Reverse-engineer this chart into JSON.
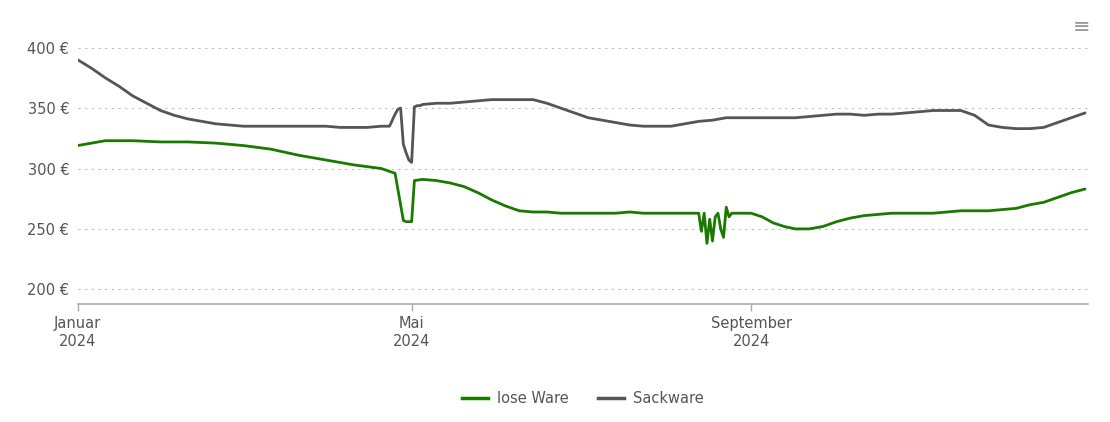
{
  "ylabel_ticks": [
    "200 €",
    "250 €",
    "300 €",
    "350 €",
    "400 €"
  ],
  "yticks": [
    200,
    250,
    300,
    350,
    400
  ],
  "ylim": [
    188,
    415
  ],
  "xlim_days": [
    0,
    366
  ],
  "xtick_labels": [
    "Januar\n2024",
    "Mai\n2024",
    "September\n2024"
  ],
  "xtick_positions_days": [
    0,
    121,
    244
  ],
  "legend_labels": [
    "lose Ware",
    "Sackware"
  ],
  "legend_colors": [
    "#1a7a00",
    "#555555"
  ],
  "line_color_lose": "#1a7a00",
  "line_color_sack": "#555555",
  "background_color": "#ffffff",
  "grid_color": "#bbbbbb",
  "axis_color": "#aaaaaa",
  "lose_ware_x": [
    0,
    5,
    10,
    20,
    30,
    40,
    50,
    60,
    70,
    80,
    90,
    100,
    110,
    115,
    117,
    118,
    119,
    120,
    121,
    122,
    125,
    130,
    135,
    140,
    145,
    150,
    155,
    160,
    165,
    170,
    175,
    180,
    185,
    190,
    195,
    200,
    205,
    210,
    215,
    220,
    225,
    226,
    227,
    228,
    229,
    230,
    231,
    232,
    233,
    234,
    235,
    236,
    237,
    238,
    239,
    240,
    241,
    242,
    243,
    244,
    248,
    252,
    256,
    260,
    265,
    270,
    275,
    280,
    285,
    290,
    295,
    300,
    305,
    310,
    315,
    320,
    325,
    330,
    335,
    340,
    345,
    350,
    355,
    360,
    365
  ],
  "lose_ware_y": [
    319,
    321,
    323,
    323,
    322,
    322,
    321,
    319,
    316,
    311,
    307,
    303,
    300,
    296,
    270,
    257,
    256,
    256,
    256,
    290,
    291,
    290,
    288,
    285,
    280,
    274,
    269,
    265,
    264,
    264,
    263,
    263,
    263,
    263,
    263,
    264,
    263,
    263,
    263,
    263,
    263,
    248,
    263,
    238,
    258,
    240,
    260,
    263,
    250,
    243,
    268,
    260,
    263,
    263,
    263,
    263,
    263,
    263,
    263,
    263,
    260,
    255,
    252,
    250,
    250,
    252,
    256,
    259,
    261,
    262,
    263,
    263,
    263,
    263,
    264,
    265,
    265,
    265,
    266,
    267,
    270,
    272,
    276,
    280,
    283
  ],
  "sack_ware_x": [
    0,
    5,
    10,
    15,
    20,
    25,
    30,
    35,
    40,
    45,
    50,
    55,
    60,
    65,
    70,
    75,
    80,
    85,
    90,
    95,
    100,
    105,
    110,
    113,
    115,
    116,
    117,
    118,
    119,
    120,
    121,
    122,
    123,
    124,
    125,
    130,
    135,
    140,
    145,
    150,
    155,
    160,
    165,
    170,
    175,
    180,
    185,
    190,
    195,
    200,
    205,
    210,
    215,
    220,
    225,
    230,
    235,
    240,
    245,
    250,
    255,
    260,
    265,
    270,
    275,
    280,
    285,
    290,
    295,
    300,
    305,
    310,
    315,
    320,
    325,
    330,
    335,
    340,
    345,
    350,
    355,
    360,
    365
  ],
  "sack_ware_y": [
    390,
    383,
    375,
    368,
    360,
    354,
    348,
    344,
    341,
    339,
    337,
    336,
    335,
    335,
    335,
    335,
    335,
    335,
    335,
    334,
    334,
    334,
    335,
    335,
    345,
    349,
    350,
    320,
    313,
    307,
    305,
    351,
    352,
    352,
    353,
    354,
    354,
    355,
    356,
    357,
    357,
    357,
    357,
    354,
    350,
    346,
    342,
    340,
    338,
    336,
    335,
    335,
    335,
    337,
    339,
    340,
    342,
    342,
    342,
    342,
    342,
    342,
    343,
    344,
    345,
    345,
    344,
    345,
    345,
    346,
    347,
    348,
    348,
    348,
    344,
    336,
    334,
    333,
    333,
    334,
    338,
    342,
    346
  ]
}
